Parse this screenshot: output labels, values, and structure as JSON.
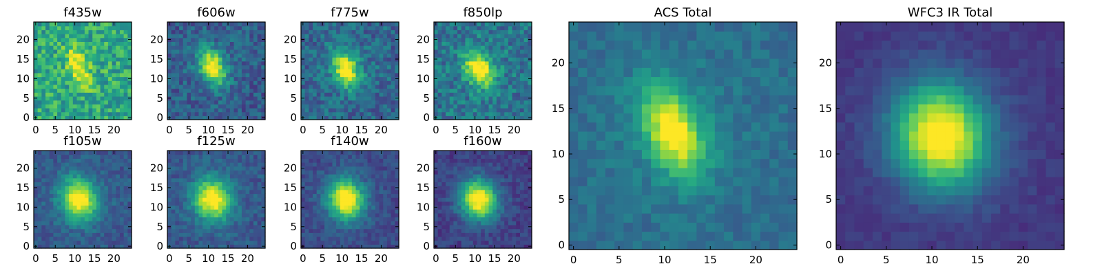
{
  "colormap": [
    "#440154",
    "#472c7a",
    "#3b528b",
    "#2c728e",
    "#21918c",
    "#28ae80",
    "#5ec962",
    "#addc30",
    "#fde725"
  ],
  "frame_color": "#000000",
  "chart_data": [
    {
      "type": "heatmap",
      "title": "f435w",
      "grid": [
        25,
        25
      ],
      "xlim": [
        0,
        24
      ],
      "ylim": [
        0,
        24
      ],
      "xticks": [
        0,
        5,
        10,
        15,
        20
      ],
      "yticks": [
        0,
        5,
        10,
        15,
        20
      ],
      "source": {
        "cx": 11,
        "cy": 13,
        "sx": 1.6,
        "sy": 3.5,
        "theta": -0.4,
        "peak": 1.0,
        "background": 0.58,
        "noise": 0.38
      }
    },
    {
      "type": "heatmap",
      "title": "f606w",
      "grid": [
        25,
        25
      ],
      "xlim": [
        0,
        24
      ],
      "ylim": [
        0,
        24
      ],
      "xticks": [
        0,
        5,
        10,
        15,
        20
      ],
      "yticks": [
        0,
        5,
        10,
        15,
        20
      ],
      "source": {
        "cx": 11,
        "cy": 13,
        "sx": 2.0,
        "sy": 3.2,
        "theta": -0.4,
        "peak": 1.0,
        "background": 0.28,
        "noise": 0.26
      }
    },
    {
      "type": "heatmap",
      "title": "f775w",
      "grid": [
        25,
        25
      ],
      "xlim": [
        0,
        24
      ],
      "ylim": [
        0,
        24
      ],
      "xticks": [
        0,
        5,
        10,
        15,
        20
      ],
      "yticks": [
        0,
        5,
        10,
        15,
        20
      ],
      "source": {
        "cx": 11,
        "cy": 12.5,
        "sx": 2.0,
        "sy": 3.3,
        "theta": -0.4,
        "peak": 1.0,
        "background": 0.32,
        "noise": 0.28
      }
    },
    {
      "type": "heatmap",
      "title": "f850lp",
      "grid": [
        25,
        25
      ],
      "xlim": [
        0,
        24
      ],
      "ylim": [
        0,
        24
      ],
      "xticks": [
        0,
        5,
        10,
        15,
        20
      ],
      "yticks": [
        0,
        5,
        10,
        15,
        20
      ],
      "source": {
        "cx": 11,
        "cy": 12.5,
        "sx": 2.2,
        "sy": 3.3,
        "theta": -0.4,
        "peak": 1.0,
        "background": 0.38,
        "noise": 0.32
      }
    },
    {
      "type": "heatmap",
      "title": "f105w",
      "grid": [
        25,
        25
      ],
      "xlim": [
        0,
        24
      ],
      "ylim": [
        0,
        24
      ],
      "xticks": [
        0,
        5,
        10,
        15,
        20
      ],
      "yticks": [
        0,
        5,
        10,
        15,
        20
      ],
      "source": {
        "cx": 11,
        "cy": 12,
        "sx": 3.0,
        "sy": 3.6,
        "theta": -0.3,
        "peak": 1.0,
        "background": 0.27,
        "noise": 0.18
      }
    },
    {
      "type": "heatmap",
      "title": "f125w",
      "grid": [
        25,
        25
      ],
      "xlim": [
        0,
        24
      ],
      "ylim": [
        0,
        24
      ],
      "xticks": [
        0,
        5,
        10,
        15,
        20
      ],
      "yticks": [
        0,
        5,
        10,
        15,
        20
      ],
      "source": {
        "cx": 11,
        "cy": 12,
        "sx": 3.0,
        "sy": 3.6,
        "theta": -0.3,
        "peak": 1.0,
        "background": 0.27,
        "noise": 0.18
      }
    },
    {
      "type": "heatmap",
      "title": "f140w",
      "grid": [
        25,
        25
      ],
      "xlim": [
        0,
        24
      ],
      "ylim": [
        0,
        24
      ],
      "xticks": [
        0,
        5,
        10,
        15,
        20
      ],
      "yticks": [
        0,
        5,
        10,
        15,
        20
      ],
      "source": {
        "cx": 11,
        "cy": 12,
        "sx": 3.0,
        "sy": 3.5,
        "theta": -0.3,
        "peak": 1.0,
        "background": 0.22,
        "noise": 0.16
      }
    },
    {
      "type": "heatmap",
      "title": "f160w",
      "grid": [
        25,
        25
      ],
      "xlim": [
        0,
        24
      ],
      "ylim": [
        0,
        24
      ],
      "xticks": [
        0,
        5,
        10,
        15,
        20
      ],
      "yticks": [
        0,
        5,
        10,
        15,
        20
      ],
      "source": {
        "cx": 11,
        "cy": 12,
        "sx": 3.0,
        "sy": 3.4,
        "theta": -0.3,
        "peak": 1.0,
        "background": 0.18,
        "noise": 0.16
      }
    },
    {
      "type": "heatmap",
      "title": "ACS Total",
      "grid": [
        25,
        25
      ],
      "xlim": [
        0,
        24
      ],
      "ylim": [
        0,
        24
      ],
      "xticks": [
        0,
        5,
        10,
        15,
        20
      ],
      "yticks": [
        0,
        5,
        10,
        15,
        20
      ],
      "source": {
        "cx": 11,
        "cy": 12.5,
        "sx": 2.0,
        "sy": 3.5,
        "theta": -0.4,
        "peak": 1.0,
        "background": 0.35,
        "noise": 0.14
      }
    },
    {
      "type": "heatmap",
      "title": "WFC3 IR Total",
      "grid": [
        25,
        25
      ],
      "xlim": [
        0,
        24
      ],
      "ylim": [
        0,
        24
      ],
      "xticks": [
        0,
        5,
        10,
        15,
        20
      ],
      "yticks": [
        0,
        5,
        10,
        15,
        20
      ],
      "source": {
        "cx": 11,
        "cy": 12,
        "sx": 3.3,
        "sy": 3.8,
        "theta": -0.3,
        "peak": 1.0,
        "background": 0.16,
        "noise": 0.08
      }
    }
  ]
}
